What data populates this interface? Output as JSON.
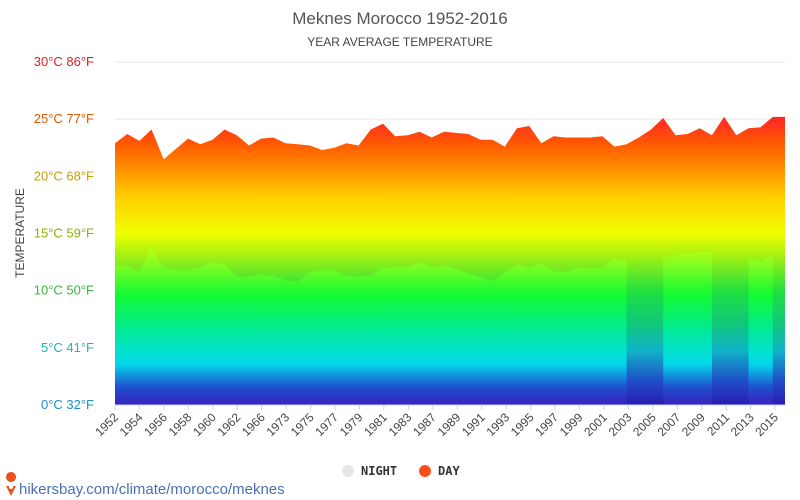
{
  "header": {
    "title": "Meknes Morocco 1952-2016",
    "subtitle": "YEAR AVERAGE TEMPERATURE"
  },
  "footer": {
    "source": "hikersbay.com/climate/morocco/meknes"
  },
  "colors": {
    "night_legend": "#e6e6e6",
    "day_legend": "#ff4d1a",
    "grid": "#e6e6e6"
  },
  "chart_data": {
    "type": "area",
    "ylabel": "TEMPERATURE",
    "ylim": [
      0,
      30
    ],
    "y_ticks": [
      {
        "value": 0,
        "label": "0°C 32°F",
        "color": "#1e90c8"
      },
      {
        "value": 5,
        "label": "5°C 41°F",
        "color": "#22b4b4"
      },
      {
        "value": 10,
        "label": "10°C 50°F",
        "color": "#3cb43c"
      },
      {
        "value": 15,
        "label": "15°C 59°F",
        "color": "#8cb400"
      },
      {
        "value": 20,
        "label": "20°C 68°F",
        "color": "#c8a000"
      },
      {
        "value": 25,
        "label": "25°C 77°F",
        "color": "#e05a00"
      },
      {
        "value": 30,
        "label": "30°C 86°F",
        "color": "#e02020"
      }
    ],
    "x_tick_labels": [
      "1952",
      "1954",
      "1956",
      "1958",
      "1960",
      "1962",
      "1966",
      "1973",
      "1975",
      "1977",
      "1979",
      "1981",
      "1983",
      "1987",
      "1989",
      "1991",
      "1993",
      "1995",
      "1997",
      "1999",
      "2001",
      "2003",
      "2005",
      "2007",
      "2009",
      "2011",
      "2013",
      "2015"
    ],
    "legend": [
      "NIGHT",
      "DAY"
    ],
    "legend_position": "bottom",
    "series": [
      {
        "name": "DAY",
        "values": [
          22.9,
          23.7,
          23.1,
          24.1,
          21.5,
          22.4,
          23.3,
          22.8,
          23.2,
          24.1,
          23.6,
          22.7,
          23.3,
          23.4,
          22.9,
          22.8,
          22.7,
          22.3,
          22.5,
          22.9,
          22.7,
          24.1,
          24.6,
          23.5,
          23.6,
          23.9,
          23.4,
          23.9,
          23.8,
          23.7,
          23.2,
          23.2,
          22.6,
          24.2,
          24.4,
          22.9,
          23.5,
          23.4,
          23.4,
          23.4,
          23.5,
          22.6,
          22.8,
          23.4,
          24.1,
          25.1,
          23.6,
          23.7,
          24.2,
          23.6,
          25.2,
          23.6,
          24.2,
          24.3,
          25.2,
          25.2
        ]
      },
      {
        "name": "NIGHT",
        "values": [
          12.1,
          12.2,
          11.6,
          13.8,
          12.0,
          11.8,
          11.8,
          12.0,
          12.5,
          12.3,
          11.2,
          11.2,
          11.4,
          11.3,
          10.9,
          10.8,
          11.6,
          11.8,
          11.8,
          11.3,
          11.2,
          11.3,
          12.0,
          12.1,
          12.1,
          12.5,
          12.0,
          12.2,
          11.9,
          11.5,
          11.2,
          10.8,
          11.6,
          12.3,
          12.0,
          12.4,
          11.7,
          11.6,
          12.1,
          11.9,
          12.0,
          12.8,
          12.7,
          null,
          null,
          12.9,
          13.1,
          13.3,
          13.4,
          13.4,
          null,
          null,
          12.9,
          12.6,
          13.1,
          null
        ]
      }
    ]
  }
}
